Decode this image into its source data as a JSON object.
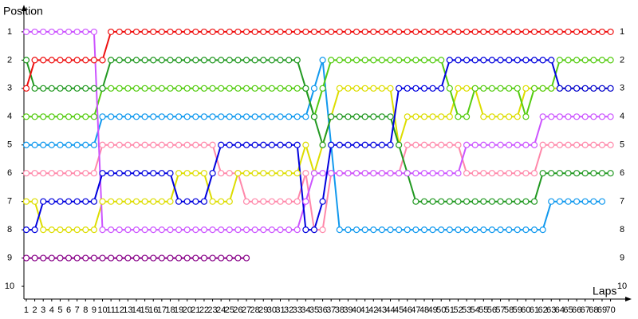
{
  "chart_data": {
    "type": "line",
    "y_label": "Position",
    "x_label": "Laps",
    "x": [
      1,
      2,
      3,
      4,
      5,
      6,
      7,
      8,
      9,
      10,
      11,
      12,
      13,
      14,
      15,
      16,
      17,
      18,
      19,
      20,
      21,
      22,
      23,
      24,
      25,
      26,
      27,
      28,
      29,
      30,
      31,
      32,
      33,
      34,
      35,
      36,
      37,
      38,
      39,
      40,
      41,
      42,
      43,
      44,
      45,
      46,
      47,
      48,
      49,
      50,
      51,
      52,
      53,
      54,
      55,
      56,
      57,
      58,
      59,
      60,
      61,
      62,
      63,
      64,
      65,
      66,
      67,
      68,
      69,
      70
    ],
    "xlim": [
      0.72,
      72.3
    ],
    "xticks": [
      1,
      2,
      3,
      4,
      5,
      6,
      7,
      8,
      9,
      10,
      11,
      12,
      13,
      14,
      15,
      16,
      17,
      18,
      19,
      20,
      21,
      22,
      23,
      24,
      25,
      26,
      27,
      28,
      29,
      30,
      31,
      32,
      33,
      34,
      35,
      36,
      37,
      38,
      39,
      40,
      41,
      42,
      43,
      44,
      45,
      46,
      47,
      48,
      49,
      50,
      51,
      52,
      53,
      54,
      55,
      56,
      57,
      58,
      59,
      60,
      61,
      62,
      63,
      64,
      65,
      66,
      67,
      68,
      69,
      70
    ],
    "ylim": [
      0.1,
      10.45
    ],
    "y_inverted": true,
    "yticks": [
      1,
      2,
      3,
      4,
      5,
      6,
      7,
      8,
      9,
      10
    ],
    "series": [
      {
        "color": "#880088",
        "values": [
          9,
          9,
          9,
          9,
          9,
          9,
          9,
          9,
          9,
          9,
          9,
          9,
          9,
          9,
          9,
          9,
          9,
          9,
          9,
          9,
          9,
          9,
          9,
          9,
          9,
          9,
          9,
          null,
          null,
          null,
          null,
          null,
          null,
          null,
          null,
          null,
          null,
          null,
          null,
          null,
          null,
          null,
          null,
          null,
          null,
          null,
          null,
          null,
          null,
          null,
          null,
          null,
          null,
          null,
          null,
          null,
          null,
          null,
          null,
          null,
          null,
          null,
          null,
          null,
          null,
          null,
          null,
          null,
          null,
          null
        ]
      },
      {
        "color": "#ff88aa",
        "values": [
          6,
          6,
          6,
          6,
          6,
          6,
          6,
          6,
          6,
          5,
          5,
          5,
          5,
          5,
          5,
          5,
          5,
          5,
          5,
          5,
          5,
          5,
          5,
          6,
          6,
          6,
          7,
          7,
          7,
          7,
          7,
          7,
          7,
          6,
          8,
          8,
          6,
          6,
          6,
          6,
          6,
          6,
          6,
          6,
          6,
          5,
          5,
          5,
          5,
          5,
          5,
          5,
          6,
          6,
          6,
          6,
          6,
          6,
          6,
          6,
          6,
          5,
          5,
          5,
          5,
          5,
          5,
          5,
          5,
          5
        ]
      },
      {
        "color": "#dddd00",
        "values": [
          7,
          7,
          8,
          8,
          8,
          8,
          8,
          8,
          8,
          7,
          7,
          7,
          7,
          7,
          7,
          7,
          7,
          7,
          6,
          6,
          6,
          6,
          7,
          7,
          7,
          6,
          6,
          6,
          6,
          6,
          6,
          6,
          6,
          5,
          6,
          5,
          4,
          3,
          3,
          3,
          3,
          3,
          3,
          3,
          5,
          4,
          4,
          4,
          4,
          4,
          4,
          3,
          3,
          3,
          4,
          4,
          4,
          4,
          4,
          3,
          3,
          3,
          3,
          3,
          3,
          3,
          3,
          3,
          3,
          3
        ]
      },
      {
        "color": "#1199ee",
        "values": [
          5,
          5,
          5,
          5,
          5,
          5,
          5,
          5,
          5,
          4,
          4,
          4,
          4,
          4,
          4,
          4,
          4,
          4,
          4,
          4,
          4,
          4,
          4,
          4,
          4,
          4,
          4,
          4,
          4,
          4,
          4,
          4,
          4,
          4,
          3,
          2,
          5,
          8,
          8,
          8,
          8,
          8,
          8,
          8,
          8,
          8,
          8,
          8,
          8,
          8,
          8,
          8,
          8,
          8,
          8,
          8,
          8,
          8,
          8,
          8,
          8,
          8,
          7,
          7,
          7,
          7,
          7,
          7,
          7,
          null
        ]
      },
      {
        "color": "#55cc11",
        "values": [
          4,
          4,
          4,
          4,
          4,
          4,
          4,
          4,
          4,
          3,
          3,
          3,
          3,
          3,
          3,
          3,
          3,
          3,
          3,
          3,
          3,
          3,
          3,
          3,
          3,
          3,
          3,
          3,
          3,
          3,
          3,
          3,
          3,
          3,
          4,
          3,
          2,
          2,
          2,
          2,
          2,
          2,
          2,
          2,
          2,
          2,
          2,
          2,
          2,
          2,
          3,
          4,
          4,
          3,
          3,
          3,
          3,
          3,
          3,
          4,
          3,
          3,
          3,
          2,
          2,
          2,
          2,
          2,
          2,
          2
        ]
      },
      {
        "color": "#229922",
        "values": [
          2,
          3,
          3,
          3,
          3,
          3,
          3,
          3,
          3,
          3,
          2,
          2,
          2,
          2,
          2,
          2,
          2,
          2,
          2,
          2,
          2,
          2,
          2,
          2,
          2,
          2,
          2,
          2,
          2,
          2,
          2,
          2,
          2,
          3,
          4,
          5,
          4,
          4,
          4,
          4,
          4,
          4,
          4,
          4,
          5,
          6,
          7,
          7,
          7,
          7,
          7,
          7,
          7,
          7,
          7,
          7,
          7,
          7,
          7,
          7,
          7,
          6,
          6,
          6,
          6,
          6,
          6,
          6,
          6,
          6
        ]
      },
      {
        "color": "#cc55ff",
        "values": [
          1,
          1,
          1,
          1,
          1,
          1,
          1,
          1,
          1,
          8,
          8,
          8,
          8,
          8,
          8,
          8,
          8,
          8,
          8,
          8,
          8,
          8,
          8,
          8,
          8,
          8,
          8,
          8,
          8,
          8,
          8,
          8,
          8,
          7,
          6,
          6,
          6,
          6,
          6,
          6,
          6,
          6,
          6,
          6,
          6,
          6,
          6,
          6,
          6,
          6,
          6,
          6,
          5,
          5,
          5,
          5,
          5,
          5,
          5,
          5,
          5,
          4,
          4,
          4,
          4,
          4,
          4,
          4,
          4,
          4
        ]
      },
      {
        "color": "#0000dd",
        "values": [
          8,
          8,
          7,
          7,
          7,
          7,
          7,
          7,
          7,
          6,
          6,
          6,
          6,
          6,
          6,
          6,
          6,
          6,
          7,
          7,
          7,
          7,
          6,
          5,
          5,
          5,
          5,
          5,
          5,
          5,
          5,
          5,
          5,
          8,
          8,
          7,
          5,
          5,
          5,
          5,
          5,
          5,
          5,
          5,
          3,
          3,
          3,
          3,
          3,
          3,
          2,
          2,
          2,
          2,
          2,
          2,
          2,
          2,
          2,
          2,
          2,
          2,
          2,
          3,
          3,
          3,
          3,
          3,
          3,
          3
        ]
      },
      {
        "color": "#ee1111",
        "values": [
          3,
          2,
          2,
          2,
          2,
          2,
          2,
          2,
          2,
          2,
          1,
          1,
          1,
          1,
          1,
          1,
          1,
          1,
          1,
          1,
          1,
          1,
          1,
          1,
          1,
          1,
          1,
          1,
          1,
          1,
          1,
          1,
          1,
          1,
          1,
          1,
          1,
          1,
          1,
          1,
          1,
          1,
          1,
          1,
          1,
          1,
          1,
          1,
          1,
          1,
          1,
          1,
          1,
          1,
          1,
          1,
          1,
          1,
          1,
          1,
          1,
          1,
          1,
          1,
          1,
          1,
          1,
          1,
          1,
          1
        ]
      }
    ]
  }
}
